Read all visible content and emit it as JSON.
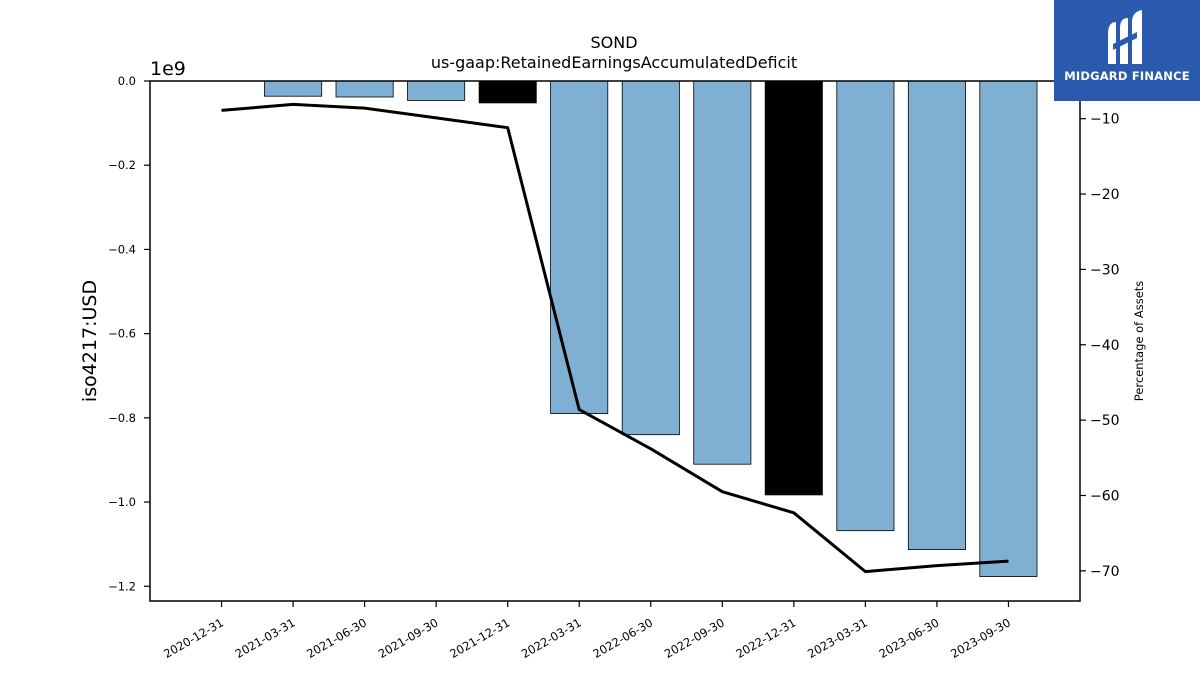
{
  "chart_data": {
    "type": "bar",
    "title": "SOND",
    "subtitle": "us-gaap:RetainedEarningsAccumulatedDeficit",
    "ylabel": "iso4217:USD",
    "y2label": "Percentage of Assets",
    "offset_label": "1e9",
    "ylim": [
      -1.235,
      0.0
    ],
    "y2lim": [
      -74.0,
      -5.0
    ],
    "yticks": [
      "0.0",
      "−0.2",
      "−0.4",
      "−0.6",
      "−0.8",
      "−1.0",
      "−1.2"
    ],
    "y2ticks": [
      "−10",
      "−20",
      "−30",
      "−40",
      "−50",
      "−60",
      "−70"
    ],
    "categories": [
      "2020-12-31",
      "2021-03-31",
      "2021-06-30",
      "2021-09-30",
      "2021-12-31",
      "2022-03-31",
      "2022-06-30",
      "2022-09-30",
      "2022-12-31",
      "2023-03-31",
      "2023-06-30",
      "2023-09-30"
    ],
    "series": [
      {
        "type": "bar",
        "values": [
          null,
          -0.036,
          -0.038,
          -0.046,
          -0.052,
          -0.79,
          -0.84,
          -0.91,
          -0.983,
          -1.068,
          -1.113,
          -1.177
        ],
        "colors": [
          "#7fb0d4",
          "#7fb0d4",
          "#7fb0d4",
          "#7fb0d4",
          "#000000",
          "#7fb0d4",
          "#7fb0d4",
          "#7fb0d4",
          "#000000",
          "#7fb0d4",
          "#7fb0d4",
          "#7fb0d4"
        ]
      },
      {
        "type": "line",
        "axis": "right",
        "values": [
          -8.9,
          -8.1,
          -8.6,
          -9.9,
          -11.2,
          -48.6,
          -53.8,
          -59.5,
          -62.3,
          -70.1,
          -69.3,
          -68.7
        ]
      }
    ],
    "grid": false
  },
  "logo": {
    "text": "MIDGARD FINANCE",
    "background": "#2a5aad"
  }
}
